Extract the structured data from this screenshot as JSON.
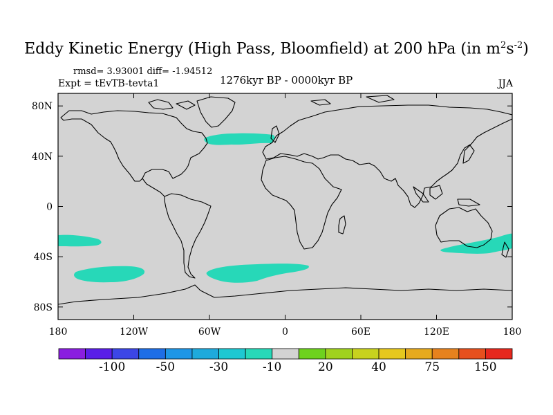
{
  "title": {
    "main": "Eddy Kinetic Energy (High Pass, Bloomfield) at 200 hPa (in m",
    "sup1": "2",
    "mid": "s",
    "sup2": "-2",
    "end": ")"
  },
  "stats_text": "rmsd= 3.93001 diff= -1.94512",
  "experiment": "Expt = tEvTB-tevta1",
  "period": "1276kyr BP - 0000kyr BP",
  "season": "JJA",
  "map": {
    "background_color": "#d3d3d3",
    "anomaly_color": "#27d8b8",
    "lat_ticks": [
      {
        "label": "80N",
        "lat": 80
      },
      {
        "label": "40N",
        "lat": 40
      },
      {
        "label": "0",
        "lat": 0
      },
      {
        "label": "40S",
        "lat": -40
      },
      {
        "label": "80S",
        "lat": -80
      }
    ],
    "lon_ticks": [
      {
        "label": "180",
        "lon": -180
      },
      {
        "label": "120W",
        "lon": -120
      },
      {
        "label": "60W",
        "lon": -60
      },
      {
        "label": "0",
        "lon": 0
      },
      {
        "label": "60E",
        "lon": 60
      },
      {
        "label": "120E",
        "lon": 120
      },
      {
        "label": "180",
        "lon": 180
      }
    ]
  },
  "colorbar": {
    "colors": [
      "#8a1ee0",
      "#5a1ee8",
      "#3c46e6",
      "#1e6ee6",
      "#1e96e6",
      "#1eaadc",
      "#1ec8d2",
      "#27d8b8",
      "#d3d3d3",
      "#6ed21e",
      "#a0d21e",
      "#c8d21e",
      "#e6c81e",
      "#e6aa1e",
      "#e6821e",
      "#e6501e",
      "#e6281e"
    ],
    "labels": [
      {
        "text": "-100",
        "boundary": 2
      },
      {
        "text": "-50",
        "boundary": 4
      },
      {
        "text": "-30",
        "boundary": 6
      },
      {
        "text": "-10",
        "boundary": 8
      },
      {
        "text": "20",
        "boundary": 10
      },
      {
        "text": "40",
        "boundary": 12
      },
      {
        "text": "75",
        "boundary": 14
      },
      {
        "text": "150",
        "boundary": 16
      }
    ]
  }
}
